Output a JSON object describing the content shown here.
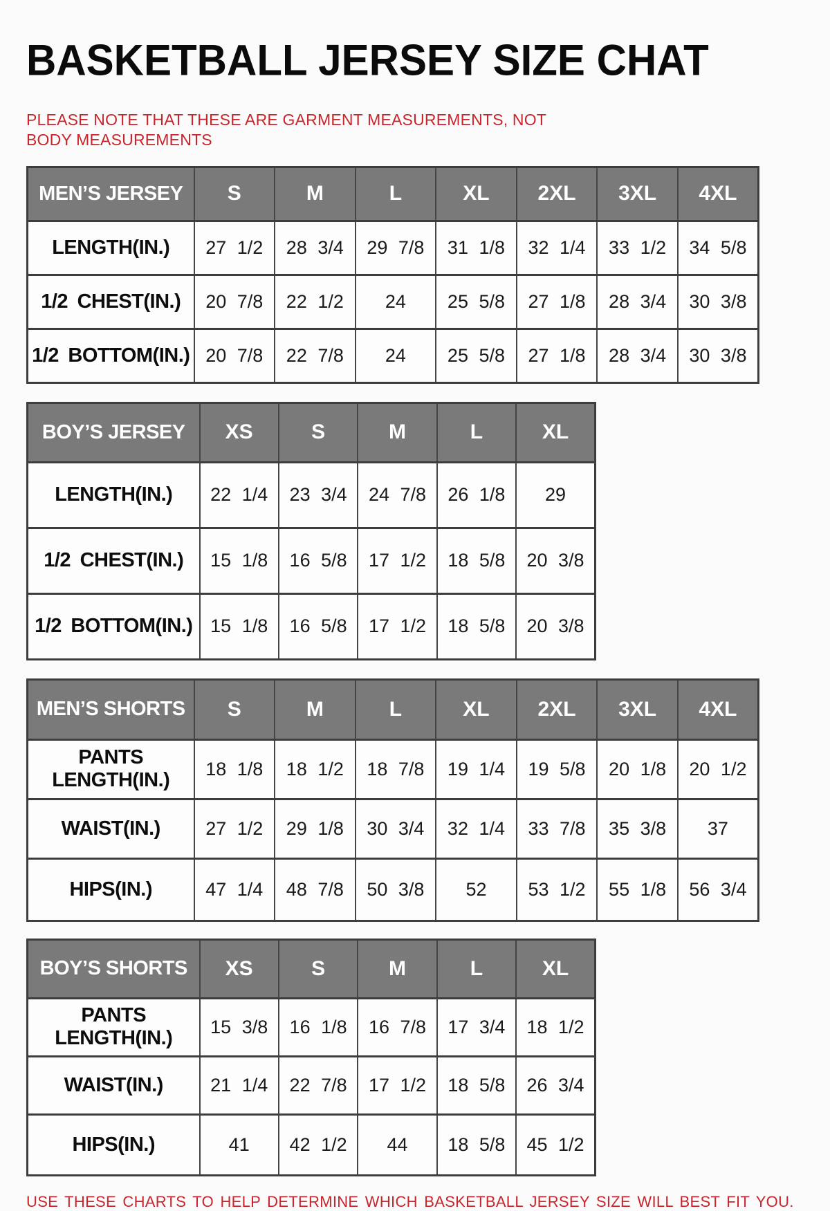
{
  "page": {
    "title": "BASKETBALL JERSEY SIZE CHAT",
    "top_note": "PLEASE NOTE THAT THESE ARE GARMENT MEASUREMENTS, NOT BODY MEASUREMENTS",
    "bottom_note": "USE THESE CHARTS TO HELP DETERMINE WHICH BASKETBALL JERSEY SIZE WILL BEST FIT YOU."
  },
  "colors": {
    "header_bg": "#7a7a7a",
    "header_text": "#ffffff",
    "note_red": "#c8252c",
    "border_dark": "#3d3d3d",
    "cell_bg": "#fdfdfd"
  },
  "tables": [
    {
      "id": "mens-jersey",
      "label": "MEN’S JERSEY",
      "columns": [
        "S",
        "M",
        "L",
        "XL",
        "2XL",
        "3XL",
        "4XL"
      ],
      "rows": [
        {
          "label": "LENGTH(IN.)",
          "values": [
            "27 1/2",
            "28 3/4",
            "29 7/8",
            "31 1/8",
            "32 1/4",
            "33 1/2",
            "34 5/8"
          ]
        },
        {
          "label": "1/2 CHEST(IN.)",
          "values": [
            "20 7/8",
            "22 1/2",
            "24",
            "25 5/8",
            "27 1/8",
            "28 3/4",
            "30 3/8"
          ]
        },
        {
          "label": "1/2 BOTTOM(IN.)",
          "values": [
            "20 7/8",
            "22 7/8",
            "24",
            "25 5/8",
            "27 1/8",
            "28 3/4",
            "30 3/8"
          ]
        }
      ]
    },
    {
      "id": "boys-jersey",
      "label": "BOY’S JERSEY",
      "columns": [
        "XS",
        "S",
        "M",
        "L",
        "XL"
      ],
      "rows": [
        {
          "label": "LENGTH(IN.)",
          "values": [
            "22 1/4",
            "23 3/4",
            "24 7/8",
            "26 1/8",
            "29"
          ]
        },
        {
          "label": "1/2 CHEST(IN.)",
          "values": [
            "15 1/8",
            "16 5/8",
            "17 1/2",
            "18 5/8",
            "20 3/8"
          ]
        },
        {
          "label": "1/2 BOTTOM(IN.)",
          "values": [
            "15 1/8",
            "16 5/8",
            "17 1/2",
            "18 5/8",
            "20 3/8"
          ]
        }
      ]
    },
    {
      "id": "mens-shorts",
      "label": "MEN’S SHORTS",
      "columns": [
        "S",
        "M",
        "L",
        "XL",
        "2XL",
        "3XL",
        "4XL"
      ],
      "rows": [
        {
          "label": "PANTS LENGTH(IN.)",
          "values": [
            "18 1/8",
            "18 1/2",
            "18 7/8",
            "19 1/4",
            "19 5/8",
            "20 1/8",
            "20 1/2"
          ]
        },
        {
          "label": "WAIST(IN.)",
          "values": [
            "27 1/2",
            "29 1/8",
            "30 3/4",
            "32 1/4",
            "33 7/8",
            "35 3/8",
            "37"
          ]
        },
        {
          "label": "HIPS(IN.)",
          "values": [
            "47 1/4",
            "48 7/8",
            "50 3/8",
            "52",
            "53 1/2",
            "55 1/8",
            "56 3/4"
          ]
        }
      ]
    },
    {
      "id": "boys-shorts",
      "label": "BOY’S SHORTS",
      "columns": [
        "XS",
        "S",
        "M",
        "L",
        "XL"
      ],
      "rows": [
        {
          "label": "PANTS LENGTH(IN.)",
          "values": [
            "15 3/8",
            "16 1/8",
            "16 7/8",
            "17 3/4",
            "18 1/2"
          ]
        },
        {
          "label": "WAIST(IN.)",
          "values": [
            "21 1/4",
            "22 7/8",
            "17 1/2",
            "18 5/8",
            "26 3/4"
          ]
        },
        {
          "label": "HIPS(IN.)",
          "values": [
            "41",
            "42 1/2",
            "44",
            "18 5/8",
            "45 1/2"
          ]
        }
      ]
    }
  ]
}
